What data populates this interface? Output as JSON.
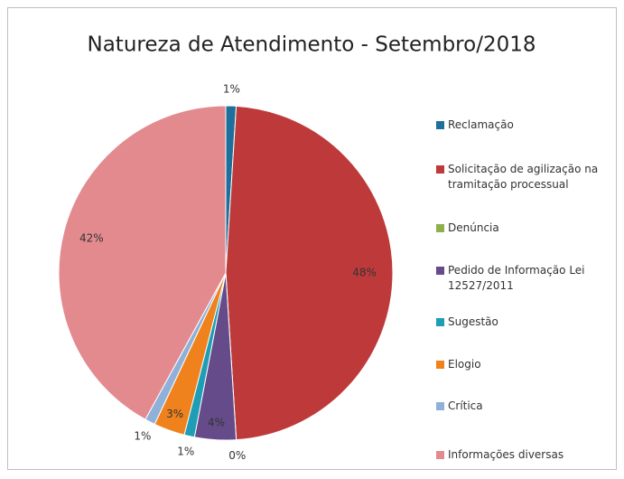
{
  "chart_data": {
    "type": "pie",
    "title": "Natureza de Atendimento - Setembro/2018",
    "categories": [
      "Reclamação",
      "Solicitação de agilização na tramitação processual",
      "Denúncia",
      "Pedido de Informação Lei 12527/2011",
      "Sugestão",
      "Elogio",
      "Crítica",
      "Informações diversas"
    ],
    "values": [
      1,
      48,
      0,
      4,
      1,
      3,
      1,
      42
    ],
    "value_labels": [
      "1%",
      "48%",
      "0%",
      "4%",
      "1%",
      "3%",
      "1%",
      "42%"
    ],
    "colors": [
      "#1f6f9c",
      "#be3a3a",
      "#8db04a",
      "#654b8a",
      "#1f9db5",
      "#f0821e",
      "#8fb0d8",
      "#e38a8f"
    ],
    "legend": "right"
  }
}
